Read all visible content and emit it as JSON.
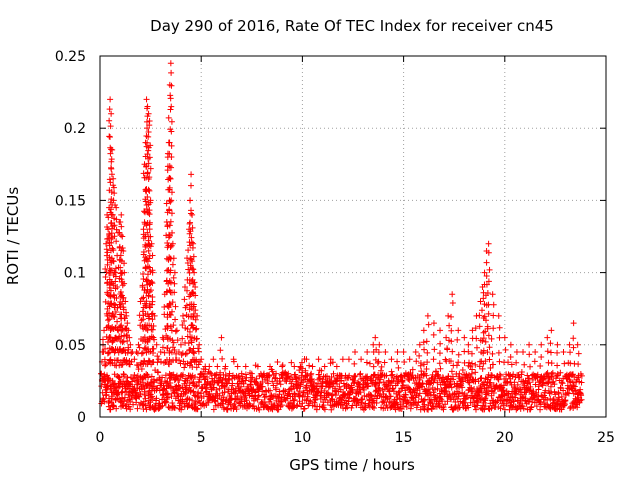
{
  "chart_data": {
    "type": "scatter",
    "title": "Day 290 of 2016, Rate Of TEC Index for receiver cn45",
    "xlabel": "GPS time / hours",
    "ylabel": "ROTI / TECUs",
    "xlim": [
      0,
      25
    ],
    "ylim": [
      0,
      0.25
    ],
    "x_ticks": [
      0,
      5,
      10,
      15,
      20,
      25
    ],
    "x_tick_labels": [
      "0",
      "5",
      "10",
      "15",
      "20",
      "25"
    ],
    "y_ticks": [
      0,
      0.05,
      0.1,
      0.15,
      0.2,
      0.25
    ],
    "y_tick_labels": [
      "0",
      "0.05",
      "0.1",
      "0.15",
      "0.2",
      "0.25"
    ],
    "grid": true,
    "marker": "+",
    "series": [
      {
        "name": "ROTI",
        "color": "#ff0000",
        "x": [
          0.05,
          0.15,
          0.2,
          0.3,
          0.35,
          0.4,
          0.45,
          0.5,
          0.55,
          0.6,
          0.65,
          0.7,
          0.75,
          0.8,
          0.85,
          0.9,
          0.95,
          1.0,
          1.05,
          1.1,
          1.15,
          1.2,
          1.25,
          1.3,
          1.35,
          1.4,
          1.45,
          1.5,
          1.6,
          1.7,
          1.8,
          1.9,
          2.0,
          2.1,
          2.15,
          2.2,
          2.25,
          2.3,
          2.35,
          2.4,
          2.45,
          2.5,
          2.55,
          2.6,
          2.7,
          2.8,
          2.9,
          3.0,
          3.1,
          3.2,
          3.3,
          3.35,
          3.4,
          3.45,
          3.5,
          3.6,
          3.7,
          3.8,
          3.9,
          4.0,
          4.1,
          4.2,
          4.3,
          4.4,
          4.45,
          4.5,
          4.55,
          4.6,
          4.65,
          4.7,
          4.8,
          4.9,
          5.0,
          5.2,
          5.4,
          5.6,
          5.8,
          6.0,
          6.2,
          6.4,
          6.6,
          6.8,
          7.0,
          7.2,
          7.5,
          7.8,
          8.1,
          8.4,
          8.7,
          9.0,
          9.3,
          9.6,
          9.9,
          10.2,
          10.5,
          10.8,
          11.1,
          11.4,
          11.7,
          12.0,
          12.3,
          12.6,
          12.9,
          13.2,
          13.5,
          13.6,
          13.8,
          14.1,
          14.4,
          14.7,
          15.0,
          15.3,
          15.6,
          15.8,
          16.0,
          16.2,
          16.5,
          16.8,
          17.1,
          17.2,
          17.4,
          17.7,
          18.0,
          18.2,
          18.4,
          18.6,
          18.8,
          18.9,
          19.0,
          19.1,
          19.2,
          19.4,
          19.7,
          20.0,
          20.3,
          20.6,
          20.9,
          21.2,
          21.5,
          21.8,
          22.1,
          22.3,
          22.6,
          22.9,
          23.2,
          23.4,
          23.6
        ],
        "y": [
          0.03,
          0.05,
          0.06,
          0.12,
          0.14,
          0.13,
          0.145,
          0.22,
          0.21,
          0.185,
          0.165,
          0.155,
          0.1,
          0.145,
          0.09,
          0.06,
          0.135,
          0.135,
          0.14,
          0.125,
          0.115,
          0.1,
          0.08,
          0.07,
          0.065,
          0.06,
          0.055,
          0.05,
          0.045,
          0.04,
          0.045,
          0.05,
          0.08,
          0.09,
          0.13,
          0.175,
          0.19,
          0.22,
          0.215,
          0.21,
          0.205,
          0.15,
          0.12,
          0.1,
          0.07,
          0.05,
          0.04,
          0.045,
          0.055,
          0.085,
          0.135,
          0.18,
          0.19,
          0.23,
          0.245,
          0.12,
          0.1,
          0.06,
          0.045,
          0.05,
          0.07,
          0.09,
          0.11,
          0.13,
          0.15,
          0.168,
          0.14,
          0.12,
          0.1,
          0.09,
          0.07,
          0.05,
          0.04,
          0.035,
          0.035,
          0.04,
          0.035,
          0.055,
          0.035,
          0.03,
          0.04,
          0.035,
          0.03,
          0.035,
          0.03,
          0.035,
          0.03,
          0.035,
          0.03,
          0.035,
          0.03,
          0.035,
          0.035,
          0.04,
          0.035,
          0.04,
          0.035,
          0.04,
          0.035,
          0.04,
          0.04,
          0.045,
          0.04,
          0.045,
          0.05,
          0.055,
          0.05,
          0.045,
          0.04,
          0.045,
          0.045,
          0.04,
          0.045,
          0.05,
          0.06,
          0.07,
          0.065,
          0.06,
          0.055,
          0.07,
          0.085,
          0.06,
          0.055,
          0.05,
          0.06,
          0.07,
          0.08,
          0.09,
          0.1,
          0.115,
          0.12,
          0.085,
          0.07,
          0.055,
          0.05,
          0.045,
          0.045,
          0.05,
          0.045,
          0.05,
          0.055,
          0.06,
          0.05,
          0.045,
          0.05,
          0.065,
          0.05
        ],
        "baseline_band": [
          0.005,
          0.03
        ],
        "note": "dense band of points between about 0.005 and 0.03 across 0-23.8 h, plus spikes as listed"
      }
    ]
  }
}
